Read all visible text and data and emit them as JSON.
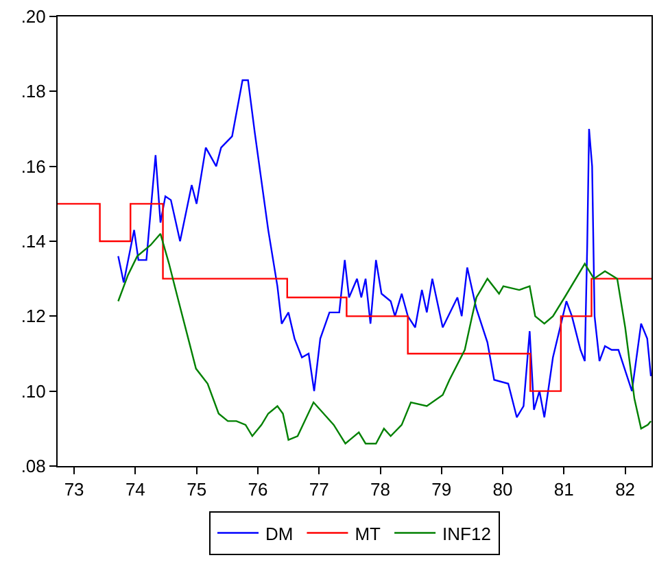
{
  "chart_data": {
    "type": "line",
    "xlim": [
      73.23,
      82.93
    ],
    "ylim": [
      0.08,
      0.2
    ],
    "xticks": [
      {
        "value": 73.5,
        "label": "73"
      },
      {
        "value": 74.5,
        "label": "74"
      },
      {
        "value": 75.5,
        "label": "75"
      },
      {
        "value": 76.5,
        "label": "76"
      },
      {
        "value": 77.5,
        "label": "77"
      },
      {
        "value": 78.5,
        "label": "78"
      },
      {
        "value": 79.5,
        "label": "79"
      },
      {
        "value": 80.5,
        "label": "80"
      },
      {
        "value": 81.5,
        "label": "81"
      },
      {
        "value": 82.5,
        "label": "82"
      }
    ],
    "yticks": [
      {
        "value": 0.08,
        "label": ".08"
      },
      {
        "value": 0.1,
        "label": ".10"
      },
      {
        "value": 0.12,
        "label": ".12"
      },
      {
        "value": 0.14,
        "label": ".14"
      },
      {
        "value": 0.16,
        "label": ".16"
      },
      {
        "value": 0.18,
        "label": ".18"
      },
      {
        "value": 0.2,
        "label": ".20"
      }
    ],
    "grid": false,
    "legend": "bottom",
    "marker": "none",
    "line_style": "solid",
    "series": [
      {
        "name": "DM",
        "color": "#0000ff",
        "x": [
          74.22,
          74.31,
          74.48,
          74.55,
          74.68,
          74.83,
          74.91,
          74.99,
          75.08,
          75.23,
          75.42,
          75.5,
          75.65,
          75.82,
          75.9,
          76.08,
          76.25,
          76.34,
          76.45,
          76.67,
          76.82,
          76.89,
          77.0,
          77.1,
          77.22,
          77.33,
          77.42,
          77.52,
          77.67,
          77.83,
          77.92,
          77.99,
          78.12,
          78.19,
          78.26,
          78.34,
          78.43,
          78.52,
          78.67,
          78.74,
          78.85,
          78.95,
          79.07,
          79.18,
          79.26,
          79.35,
          79.52,
          79.76,
          79.83,
          79.92,
          80.07,
          80.25,
          80.36,
          80.59,
          80.73,
          80.84,
          80.94,
          81.01,
          81.1,
          81.18,
          81.32,
          81.54,
          81.63,
          81.77,
          81.84,
          81.88,
          81.91,
          81.96,
          82.0,
          82.08,
          82.17,
          82.28,
          82.39,
          82.49,
          82.61,
          82.76,
          82.86,
          82.92
        ],
        "values": [
          0.136,
          0.129,
          0.143,
          0.135,
          0.135,
          0.163,
          0.145,
          0.152,
          0.151,
          0.14,
          0.155,
          0.15,
          0.165,
          0.16,
          0.165,
          0.168,
          0.183,
          0.183,
          0.169,
          0.143,
          0.128,
          0.118,
          0.121,
          0.114,
          0.109,
          0.11,
          0.1,
          0.114,
          0.121,
          0.121,
          0.135,
          0.125,
          0.13,
          0.125,
          0.13,
          0.118,
          0.135,
          0.126,
          0.124,
          0.12,
          0.126,
          0.12,
          0.117,
          0.127,
          0.121,
          0.13,
          0.117,
          0.125,
          0.12,
          0.133,
          0.122,
          0.113,
          0.103,
          0.102,
          0.093,
          0.096,
          0.116,
          0.095,
          0.1,
          0.093,
          0.109,
          0.124,
          0.12,
          0.111,
          0.108,
          0.139,
          0.17,
          0.16,
          0.12,
          0.108,
          0.112,
          0.111,
          0.111,
          0.106,
          0.1,
          0.118,
          0.114,
          0.104
        ]
      },
      {
        "name": "MT",
        "color": "#ff0000",
        "type": "step",
        "x": [
          73.23,
          73.92,
          74.42,
          74.95,
          76.98,
          77.95,
          78.95,
          80.95,
          81.45,
          81.95,
          82.93
        ],
        "values": [
          0.15,
          0.14,
          0.15,
          0.13,
          0.125,
          0.12,
          0.11,
          0.1,
          0.12,
          0.13,
          0.13
        ]
      },
      {
        "name": "INF12",
        "color": "#008000",
        "x": [
          74.22,
          74.38,
          74.53,
          74.75,
          74.91,
          75.05,
          75.19,
          75.38,
          75.49,
          75.68,
          75.86,
          76.01,
          76.15,
          76.3,
          76.41,
          76.56,
          76.67,
          76.82,
          76.91,
          77.0,
          77.15,
          77.41,
          77.74,
          77.93,
          78.15,
          78.26,
          78.43,
          78.56,
          78.67,
          78.85,
          79.0,
          79.26,
          79.52,
          79.63,
          79.88,
          80.0,
          80.07,
          80.25,
          80.44,
          80.51,
          80.77,
          80.94,
          81.03,
          81.18,
          81.32,
          81.51,
          81.84,
          81.99,
          82.17,
          82.37,
          82.5,
          82.65,
          82.76,
          82.87,
          82.92
        ],
        "values": [
          0.124,
          0.131,
          0.136,
          0.139,
          0.142,
          0.134,
          0.125,
          0.113,
          0.106,
          0.102,
          0.094,
          0.092,
          0.092,
          0.091,
          0.088,
          0.091,
          0.094,
          0.096,
          0.094,
          0.087,
          0.088,
          0.097,
          0.091,
          0.086,
          0.089,
          0.086,
          0.086,
          0.09,
          0.088,
          0.091,
          0.097,
          0.096,
          0.099,
          0.103,
          0.111,
          0.12,
          0.125,
          0.13,
          0.126,
          0.128,
          0.127,
          0.128,
          0.12,
          0.118,
          0.12,
          0.125,
          0.134,
          0.13,
          0.132,
          0.13,
          0.117,
          0.098,
          0.09,
          0.091,
          0.092
        ]
      }
    ]
  }
}
